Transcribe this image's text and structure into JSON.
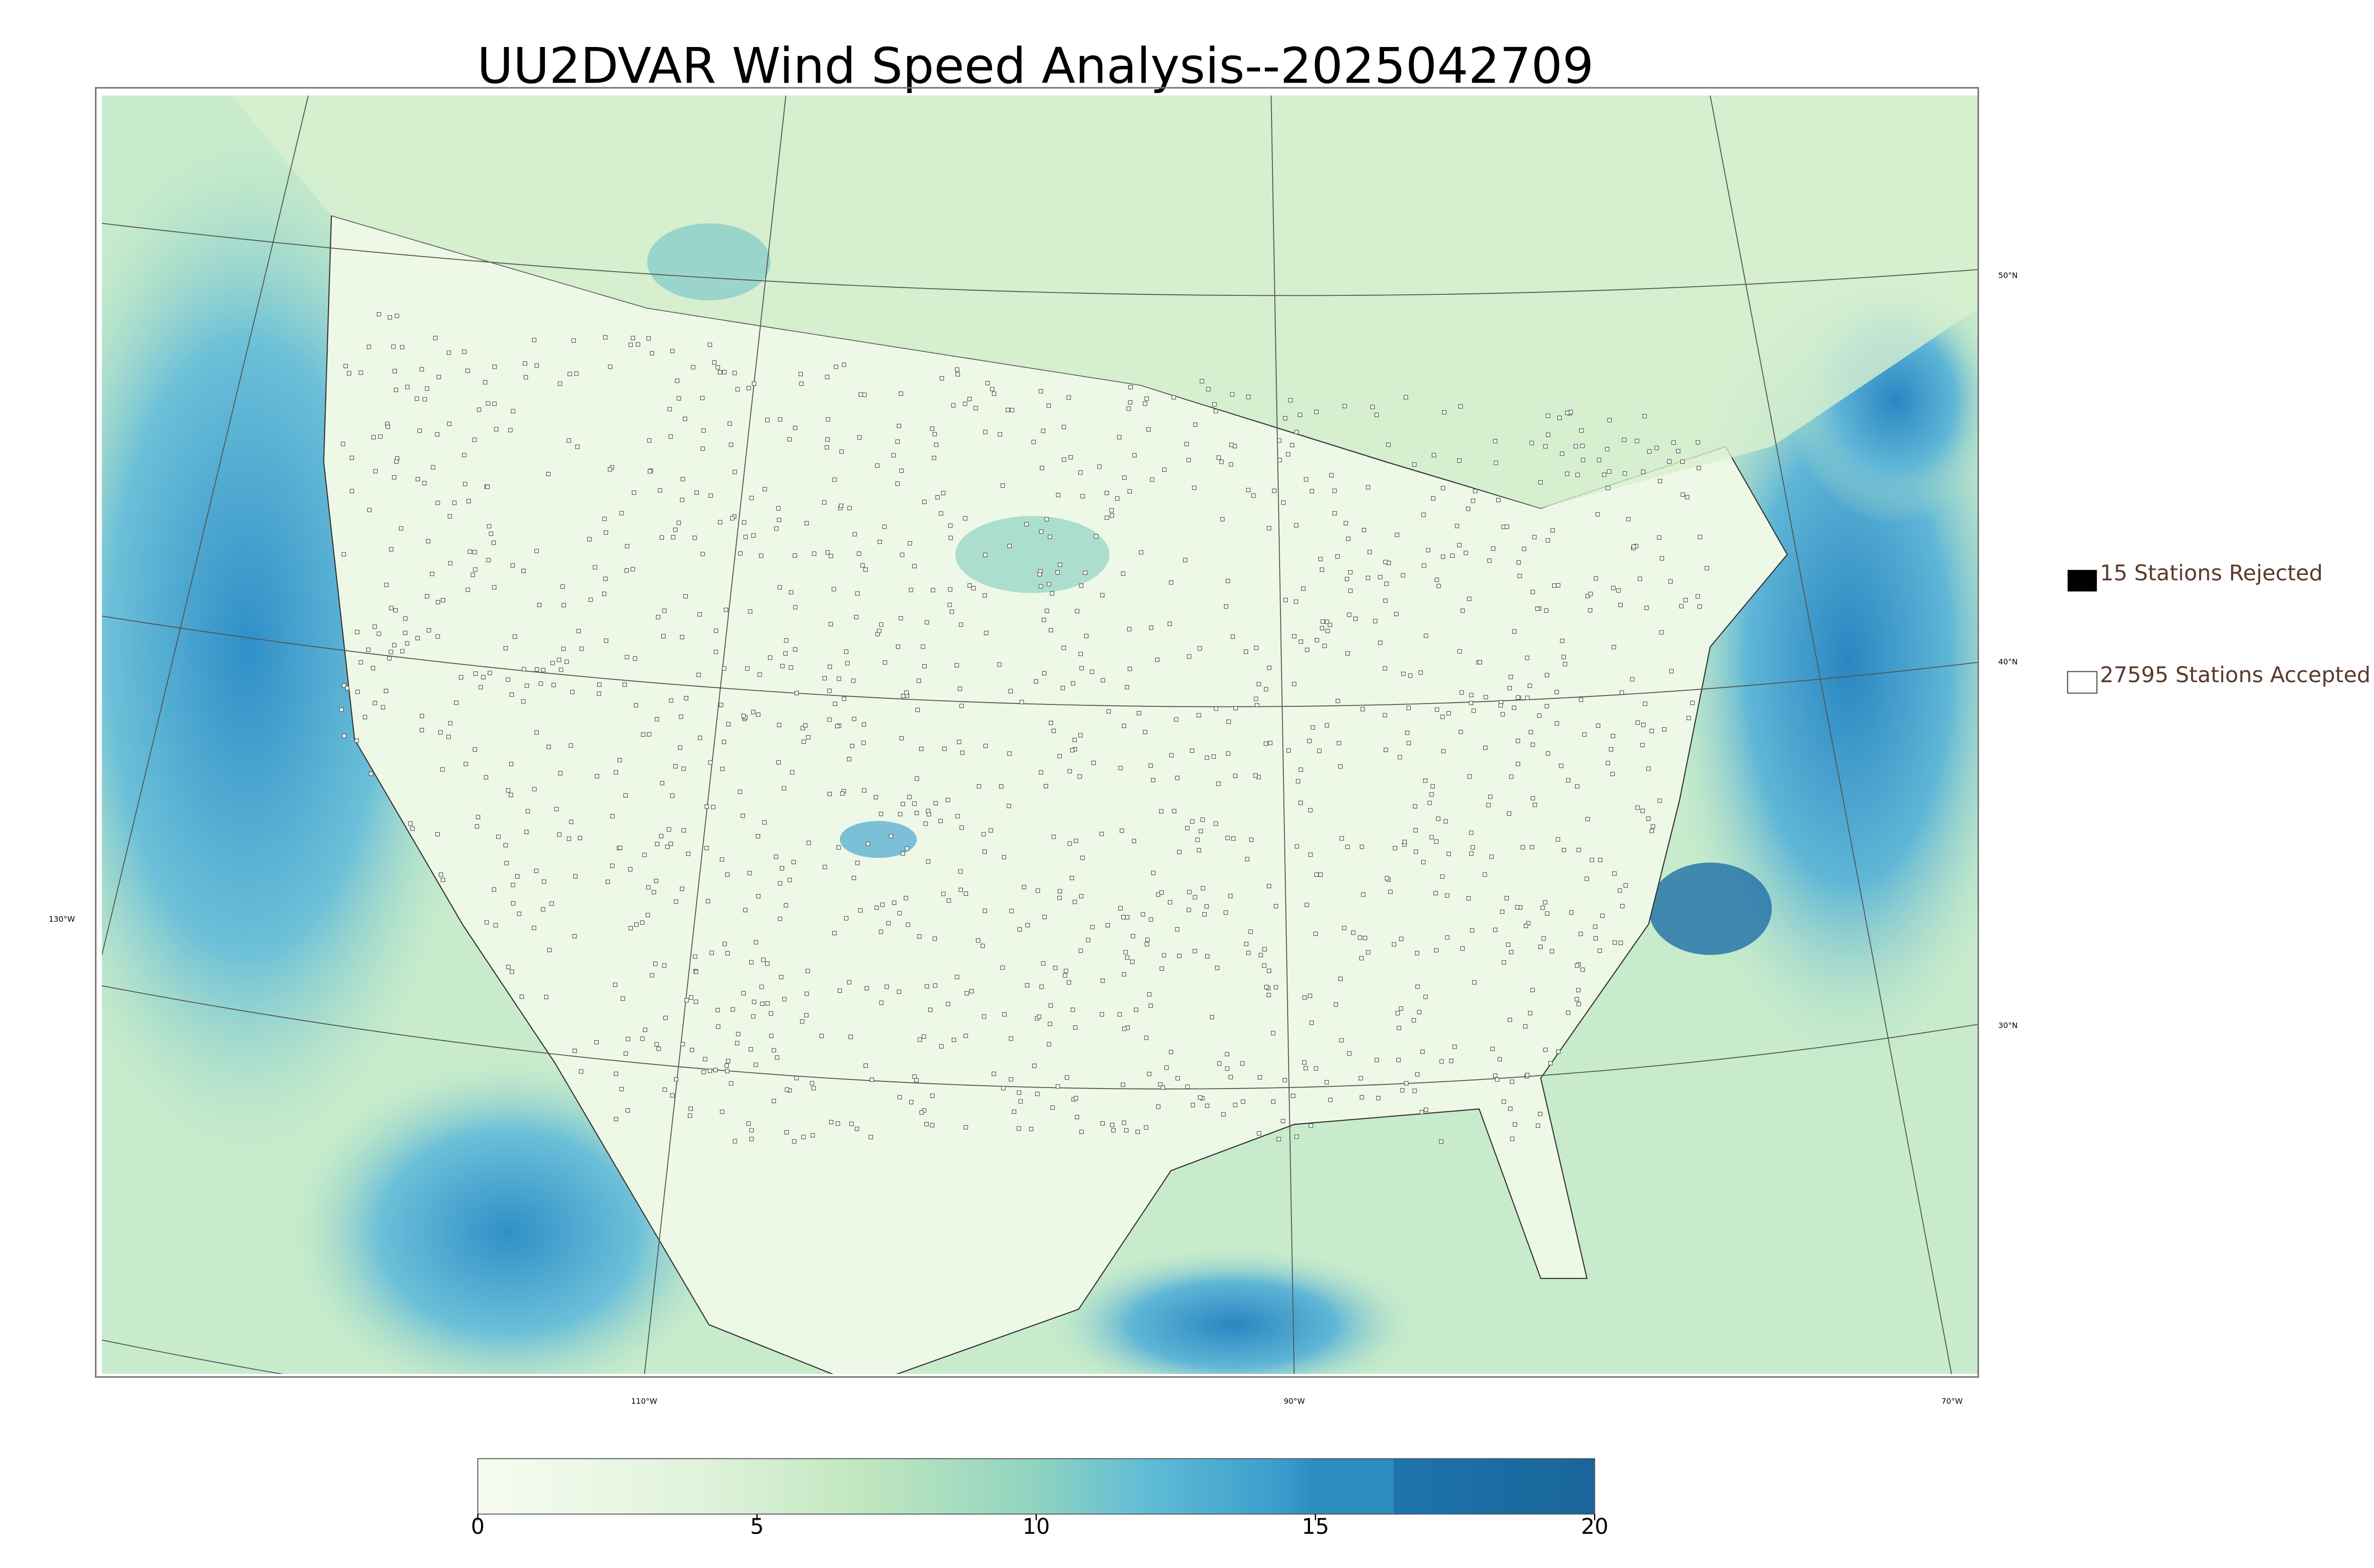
{
  "title": "UU2DVAR Wind Speed Analysis--2025042709",
  "legend": {
    "rejected": "15 Stations Rejected",
    "accepted": "27595 Stations Accepted"
  },
  "map": {
    "lat_labels": [
      "50°N",
      "40°N",
      "30°N"
    ],
    "lon_labels": [
      "130°W",
      "110°W",
      "90°W",
      "70°W"
    ]
  },
  "colorbar": {
    "lim": [
      0,
      20
    ],
    "ticks": [
      0,
      5,
      10,
      15,
      20
    ]
  }
}
